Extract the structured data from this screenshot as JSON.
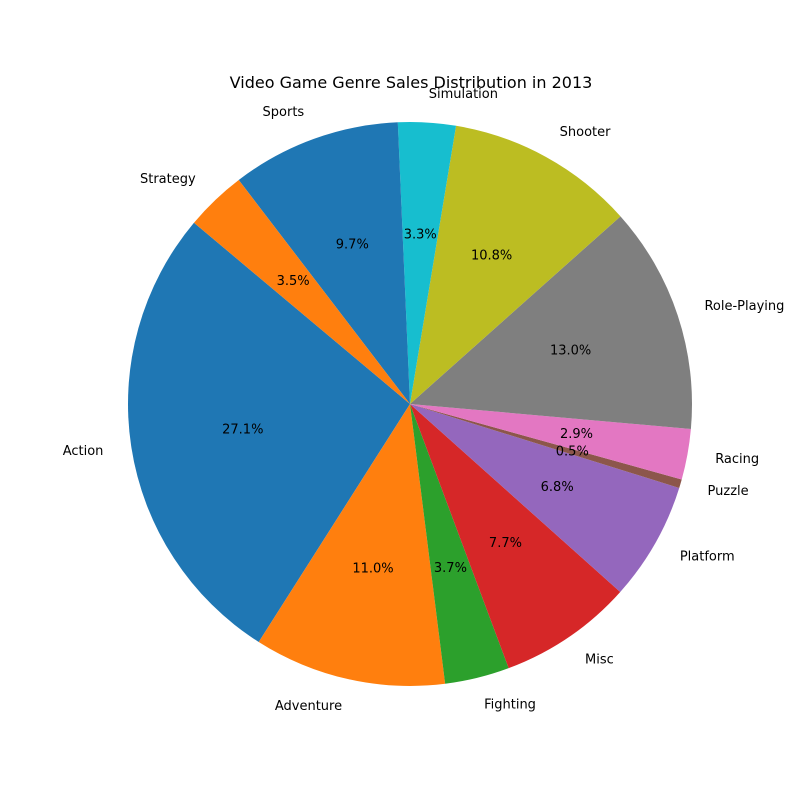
{
  "chart_data": {
    "type": "pie",
    "title": "Video Game Genre Sales Distribution in 2013",
    "slices": [
      {
        "label": "Action",
        "value": 27.1,
        "pct_label": "27.1%",
        "color": "#1f77b4"
      },
      {
        "label": "Adventure",
        "value": 11.0,
        "pct_label": "11.0%",
        "color": "#ff7f0e"
      },
      {
        "label": "Fighting",
        "value": 3.7,
        "pct_label": "3.7%",
        "color": "#2ca02c"
      },
      {
        "label": "Misc",
        "value": 7.7,
        "pct_label": "7.7%",
        "color": "#d62728"
      },
      {
        "label": "Platform",
        "value": 6.8,
        "pct_label": "6.8%",
        "color": "#9467bd"
      },
      {
        "label": "Puzzle",
        "value": 0.5,
        "pct_label": "0.5%",
        "color": "#8c564b"
      },
      {
        "label": "Racing",
        "value": 2.9,
        "pct_label": "2.9%",
        "color": "#e377c2"
      },
      {
        "label": "Role-Playing",
        "value": 13.0,
        "pct_label": "13.0%",
        "color": "#7f7f7f"
      },
      {
        "label": "Shooter",
        "value": 10.8,
        "pct_label": "10.8%",
        "color": "#bcbd22"
      },
      {
        "label": "Simulation",
        "value": 3.3,
        "pct_label": "3.3%",
        "color": "#17becf"
      },
      {
        "label": "Sports",
        "value": 9.7,
        "pct_label": "9.7%",
        "color": "#1f77b4"
      },
      {
        "label": "Strategy",
        "value": 3.5,
        "pct_label": "3.5%",
        "color": "#ff7f0e"
      }
    ],
    "start_angle_deg": 140,
    "direction": "counterclockwise",
    "legend": "none"
  }
}
